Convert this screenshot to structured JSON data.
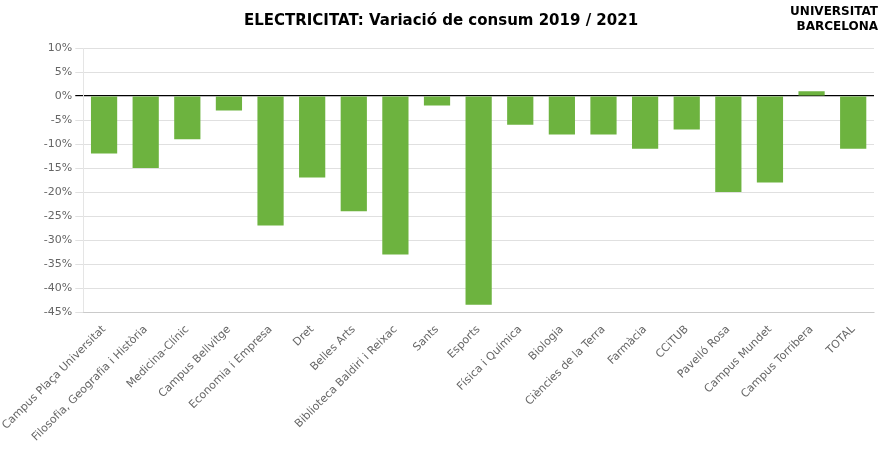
{
  "chart_data": {
    "type": "bar",
    "title": "ELECTRICITAT: Variació de consum 2019 / 2021",
    "categories": [
      "Campus Plaça Universitat",
      "Filosofia, Geografia i Història",
      "Medicina-Clínic",
      "Campus Bellvitge",
      "Economia i Empresa",
      "Dret",
      "Belles Arts",
      "Biblioteca Baldiri i Reixac",
      "Sants",
      "Esports",
      "Física i Química",
      "Biologia",
      "Ciències de la Terra",
      "Farmàcia",
      "CCiTUB",
      "Pavelló Rosa",
      "Campus Mundet",
      "Campus Torribera",
      "TOTAL"
    ],
    "values": [
      -12.0,
      -15.0,
      -9.0,
      -3.0,
      -27.0,
      -17.0,
      -24.0,
      -33.0,
      -2.0,
      -43.5,
      -6.0,
      -8.0,
      -8.0,
      -11.0,
      -7.0,
      -20.0,
      -18.0,
      1.0,
      -11.0
    ],
    "color": "#6db33f",
    "ylim": [
      -45,
      10
    ],
    "yticks": [
      {
        "value": 10,
        "label": "10%"
      },
      {
        "value": 5,
        "label": "5%"
      },
      {
        "value": 0,
        "label": "0%"
      },
      {
        "value": -5,
        "label": "-5%"
      },
      {
        "value": -10,
        "label": "-10%"
      },
      {
        "value": -15,
        "label": "-15%"
      },
      {
        "value": -20,
        "label": "-20%"
      },
      {
        "value": -25,
        "label": "-25%"
      },
      {
        "value": -30,
        "label": "-30%"
      },
      {
        "value": -35,
        "label": "-35%"
      },
      {
        "value": -40,
        "label": "-40%"
      },
      {
        "value": -45,
        "label": "-45%"
      }
    ],
    "grid": true,
    "annotations": [
      "UNIVERSITAT",
      "BARCELONA"
    ]
  }
}
